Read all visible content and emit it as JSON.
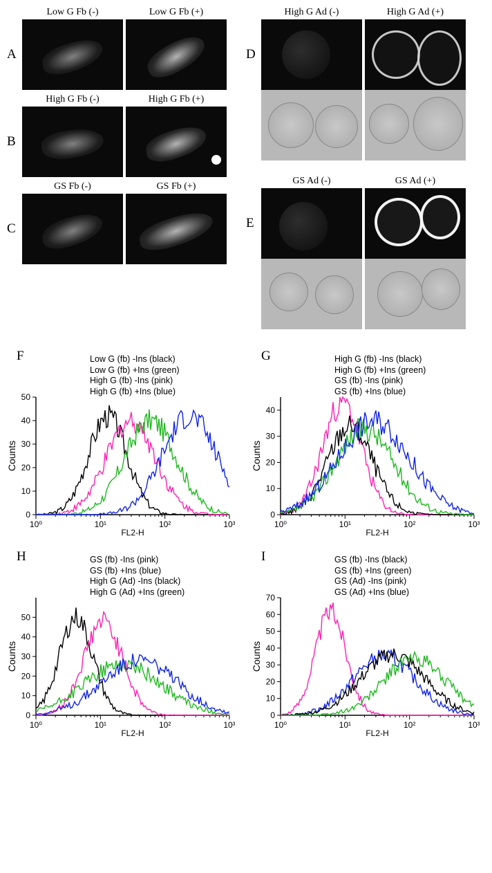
{
  "colors": {
    "black": "#000000",
    "green": "#1fb81f",
    "pink": "#ff1faf",
    "blue": "#1023e8",
    "bg": "#ffffff"
  },
  "panels": {
    "A": {
      "left_label": "Low G Fb (-)",
      "right_label": "Low G Fb (+)"
    },
    "B": {
      "left_label": "High G Fb (-)",
      "right_label": "High G Fb (+)"
    },
    "C": {
      "left_label": "GS Fb (-)",
      "right_label": "GS Fb (+)"
    },
    "D": {
      "left_label": "High G Ad (-)",
      "right_label": "High G Ad (+)"
    },
    "E": {
      "left_label": "GS Ad (-)",
      "right_label": "GS Ad (+)"
    }
  },
  "histograms": {
    "axis": {
      "xlabel": "FL2-H",
      "ylabel": "Counts",
      "xlim": [
        1,
        1000
      ],
      "xticks": [
        1,
        10,
        100,
        1000
      ],
      "xtick_labels": [
        "10⁰",
        "10¹",
        "10²",
        "10³"
      ],
      "xscale": "log",
      "grid": false,
      "line_width": 1.4,
      "font_size": 12
    },
    "F": {
      "ylim": [
        0,
        50
      ],
      "ytick_step": 10,
      "yticks": [
        0,
        10,
        20,
        30,
        40,
        50
      ],
      "legend": [
        {
          "text": "Low G (fb) -Ins (black)",
          "color": "black"
        },
        {
          "text": "Low G (fb) +Ins (green)",
          "color": "green"
        },
        {
          "text": "High G (fb) -Ins (pink)",
          "color": "pink"
        },
        {
          "text": "High G (fb) +Ins (blue)",
          "color": "blue"
        }
      ],
      "series": [
        {
          "color": "black",
          "peak_x": 13,
          "peak_y": 42,
          "spread": 0.3
        },
        {
          "color": "pink",
          "peak_x": 30,
          "peak_y": 40,
          "spread": 0.38
        },
        {
          "color": "green",
          "peak_x": 60,
          "peak_y": 40,
          "spread": 0.4
        },
        {
          "color": "blue",
          "peak_x": 240,
          "peak_y": 42,
          "spread": 0.42
        }
      ]
    },
    "G": {
      "ylim": [
        0,
        45
      ],
      "ytick_step": 10,
      "yticks": [
        0,
        10,
        20,
        30,
        40
      ],
      "legend": [
        {
          "text": "High G (fb) -Ins (black)",
          "color": "black"
        },
        {
          "text": "High G (fb) +Ins (green)",
          "color": "green"
        },
        {
          "text": "GS (fb) -Ins (pink)",
          "color": "pink"
        },
        {
          "text": "GS (fb) +Ins (blue)",
          "color": "blue"
        }
      ],
      "series": [
        {
          "color": "pink",
          "peak_x": 9,
          "peak_y": 43,
          "spread": 0.3
        },
        {
          "color": "black",
          "peak_x": 12,
          "peak_y": 34,
          "spread": 0.35
        },
        {
          "color": "green",
          "peak_x": 20,
          "peak_y": 33,
          "spread": 0.45
        },
        {
          "color": "blue",
          "peak_x": 28,
          "peak_y": 36,
          "spread": 0.55
        }
      ]
    },
    "H": {
      "ylim": [
        0,
        60
      ],
      "ytick_step": 10,
      "yticks": [
        0,
        10,
        20,
        30,
        40,
        50
      ],
      "legend": [
        {
          "text": "GS (fb) -Ins (pink)",
          "color": "pink"
        },
        {
          "text": "GS (fb) +Ins (blue)",
          "color": "blue"
        },
        {
          "text": "High G (Ad) -Ins (black)",
          "color": "black"
        },
        {
          "text": "High G (Ad) +Ins (green)",
          "color": "green"
        }
      ],
      "series": [
        {
          "color": "black",
          "peak_x": 4.2,
          "peak_y": 50,
          "spread": 0.26
        },
        {
          "color": "pink",
          "peak_x": 11,
          "peak_y": 48,
          "spread": 0.3
        },
        {
          "color": "green",
          "peak_x": 22,
          "peak_y": 26,
          "spread": 0.6
        },
        {
          "color": "blue",
          "peak_x": 40,
          "peak_y": 28,
          "spread": 0.58
        }
      ]
    },
    "I": {
      "ylim": [
        0,
        70
      ],
      "ytick_step": 10,
      "yticks": [
        0,
        10,
        20,
        30,
        40,
        50,
        60,
        70
      ],
      "legend": [
        {
          "text": "GS (fb) -Ins (black)",
          "color": "black"
        },
        {
          "text": "GS (fb) +Ins (green)",
          "color": "green"
        },
        {
          "text": "GS (Ad) -Ins (pink)",
          "color": "pink"
        },
        {
          "text": "GS (Ad) +Ins (blue)",
          "color": "blue"
        }
      ],
      "series": [
        {
          "color": "pink",
          "peak_x": 6,
          "peak_y": 62,
          "spread": 0.24
        },
        {
          "color": "blue",
          "peak_x": 40,
          "peak_y": 35,
          "spread": 0.48
        },
        {
          "color": "black",
          "peak_x": 55,
          "peak_y": 36,
          "spread": 0.5
        },
        {
          "color": "green",
          "peak_x": 120,
          "peak_y": 34,
          "spread": 0.48
        }
      ]
    }
  }
}
